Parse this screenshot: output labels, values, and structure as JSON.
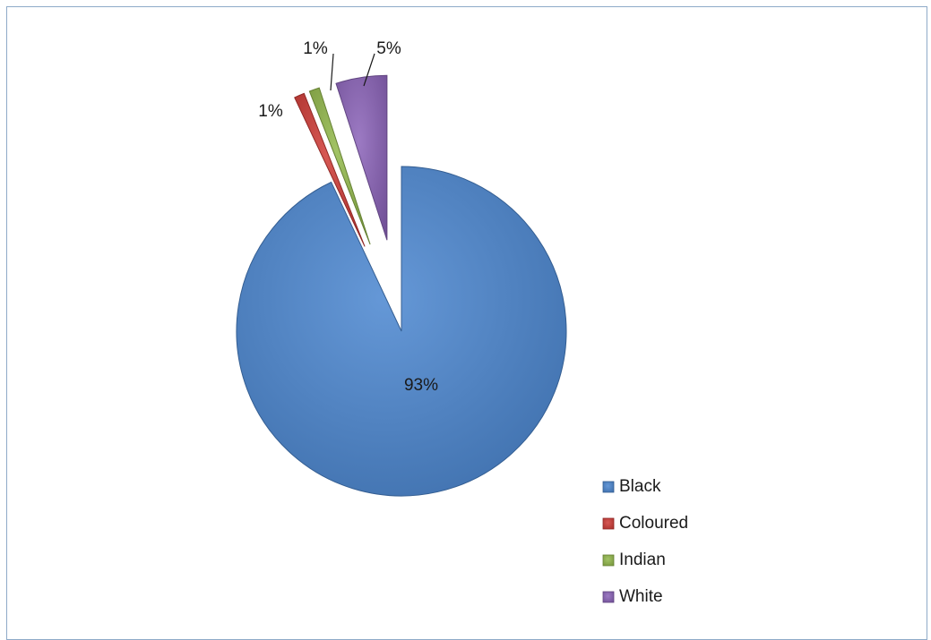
{
  "chart_data": {
    "type": "pie",
    "title": "",
    "categories": [
      "Black",
      "Coloured",
      "Indian",
      "White"
    ],
    "values": [
      93,
      1,
      1,
      5
    ],
    "data_labels": [
      "93%",
      "1%",
      "1%",
      "5%"
    ],
    "legend_position": "bottom-right",
    "colors": [
      "#4a86d0",
      "#cf3a36",
      "#92b84a",
      "#8a62b8"
    ],
    "exploded": [
      false,
      true,
      true,
      true
    ]
  }
}
